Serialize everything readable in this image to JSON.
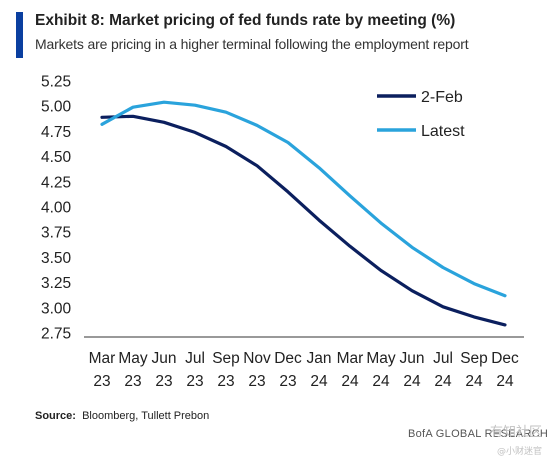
{
  "header": {
    "title": "Exhibit 8: Market pricing of fed funds rate by meeting (%)",
    "subtitle": "Markets are pricing in a higher terminal following the employment report"
  },
  "source": {
    "label": "Source:",
    "text": "Bloomberg, Tullett Prebon"
  },
  "footer": {
    "text": "BofA GLOBAL RESEARCH"
  },
  "watermark": {
    "line1": "有知社区",
    "line2": "@小财迷官"
  },
  "chart_data": {
    "type": "line",
    "title": "Market pricing of fed funds rate by meeting (%)",
    "xlabel": "",
    "ylabel": "",
    "categories": [
      "Mar 23",
      "May 23",
      "Jun 23",
      "Jul 23",
      "Sep 23",
      "Nov 23",
      "Dec 23",
      "Jan 24",
      "Mar 24",
      "May 24",
      "Jun 24",
      "Jul 24",
      "Sep 24",
      "Dec 24"
    ],
    "x_tick_lines": [
      [
        "Mar",
        "23"
      ],
      [
        "May",
        "23"
      ],
      [
        "Jun",
        "23"
      ],
      [
        "Jul",
        "23"
      ],
      [
        "Sep",
        "23"
      ],
      [
        "Nov",
        "23"
      ],
      [
        "Dec",
        "23"
      ],
      [
        "Jan",
        "24"
      ],
      [
        "Mar",
        "24"
      ],
      [
        "May",
        "24"
      ],
      [
        "Jun",
        "24"
      ],
      [
        "Jul",
        "24"
      ],
      [
        "Sep",
        "24"
      ],
      [
        "Dec",
        "24"
      ]
    ],
    "y_ticks": [
      "5.25",
      "5.00",
      "4.75",
      "4.50",
      "4.25",
      "4.00",
      "3.75",
      "3.50",
      "3.25",
      "3.00",
      "2.75"
    ],
    "ylim": [
      2.75,
      5.25
    ],
    "grid": false,
    "legend_position": "top-right",
    "series": [
      {
        "name": "2-Feb",
        "color": "#0b1f5e",
        "values": [
          4.89,
          4.9,
          4.84,
          4.74,
          4.6,
          4.41,
          4.15,
          3.87,
          3.61,
          3.37,
          3.17,
          3.01,
          2.91,
          2.83
        ]
      },
      {
        "name": "Latest",
        "color": "#2aa3dc",
        "values": [
          4.82,
          4.99,
          5.04,
          5.01,
          4.94,
          4.81,
          4.64,
          4.39,
          4.11,
          3.84,
          3.6,
          3.4,
          3.24,
          3.12
        ]
      }
    ]
  }
}
